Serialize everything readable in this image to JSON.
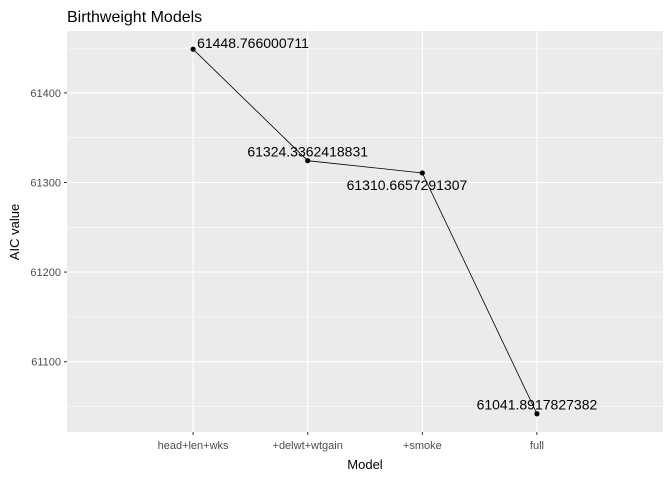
{
  "chart_data": {
    "type": "line",
    "title": "Birthweight Models",
    "xlabel": "Model",
    "ylabel": "AIC value",
    "categories": [
      "head+len+wks",
      "+delwt+wtgain",
      "+smoke",
      "full"
    ],
    "values": [
      61448.766000711,
      61324.3362418831,
      61310.6657291307,
      61041.8917827382
    ],
    "data_labels": [
      "61448.766000711",
      "61324.3362418831",
      "61310.6657291307",
      "61041.8917827382"
    ],
    "yticks": [
      61100,
      61200,
      61300,
      61400
    ],
    "ytick_labels": [
      "61100",
      "61200",
      "61300",
      "61400"
    ],
    "ylim": [
      61021.5,
      61469.1
    ],
    "grid": true,
    "legend": "none",
    "colors": {
      "panel": "#ebebeb",
      "grid_major": "#ffffff",
      "line": "#000000",
      "point": "#000000",
      "tick_label": "#4d4d4d",
      "tick_mark": "#333333"
    }
  }
}
